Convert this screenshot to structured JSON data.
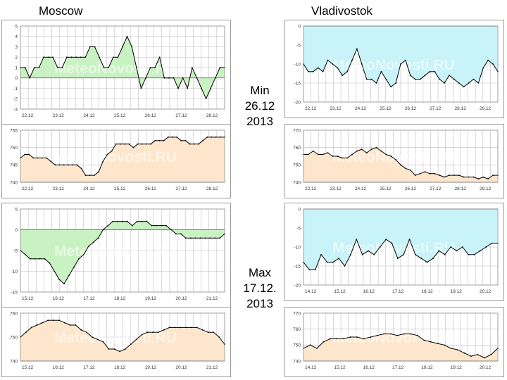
{
  "header": {
    "left_city": "Moscow",
    "right_city": "Vladivostok"
  },
  "notes": {
    "min": [
      "Min",
      "26.12",
      "2013"
    ],
    "max": [
      "Max",
      "17.12.",
      "2013"
    ]
  },
  "watermark": "MeteoNovosti.RU",
  "colors": {
    "temp_green": "#c9f2c2",
    "temp_cyan": "#c8f3f9",
    "pressure_peach": "#fde6cc",
    "line": "#000000",
    "grid": "#bdbdbd"
  },
  "chart_data": [
    {
      "id": "moscow-min-temp",
      "type": "area",
      "city": "Moscow",
      "period": "Min",
      "ylim": [
        -3,
        5
      ],
      "yticks": [
        5,
        4,
        3,
        2,
        1,
        0,
        -1,
        -2,
        -3
      ],
      "fill_color": "#c9f2c2",
      "xlabels": [
        "22.12",
        "23.12",
        "24.12",
        "25.12",
        "26.12",
        "27.12",
        "28.12"
      ],
      "values": [
        1,
        1,
        0,
        1,
        1,
        2,
        2,
        2,
        1,
        1,
        2,
        2,
        2,
        2,
        2,
        3,
        3,
        2,
        1,
        1,
        2,
        2,
        3,
        4,
        3,
        1,
        -1,
        0,
        1,
        1,
        2,
        0,
        0,
        0,
        -1,
        0,
        -1,
        1,
        0,
        -1,
        -2,
        -1,
        0,
        1,
        1
      ]
    },
    {
      "id": "moscow-min-pressure",
      "type": "area",
      "city": "Moscow",
      "period": "Min",
      "ylim": [
        740,
        755
      ],
      "yticks": [
        755,
        750,
        745,
        740
      ],
      "fill_color": "#fde6cc",
      "xlabels": [
        "22.12",
        "23.12",
        "24.12",
        "25.12",
        "26.12",
        "27.12",
        "28.12"
      ],
      "values": [
        747,
        748,
        748,
        747,
        747,
        747,
        747,
        746,
        745,
        745,
        745,
        745,
        745,
        745,
        744,
        742,
        742,
        742,
        743,
        746,
        748,
        749,
        751,
        751,
        751,
        751,
        750,
        751,
        751,
        751,
        751,
        752,
        752,
        752,
        753,
        753,
        753,
        752,
        752,
        751,
        751,
        751,
        752,
        753,
        753,
        753,
        753,
        753
      ]
    },
    {
      "id": "vladivostok-min-temp",
      "type": "area",
      "city": "Vladivostok",
      "period": "Min",
      "ylim": [
        -20,
        0
      ],
      "yticks": [
        0,
        -5,
        -10,
        -15,
        -20
      ],
      "fill_color": "#c8f3f9",
      "xlabels": [
        "22.12",
        "23.12",
        "24.12",
        "25.12",
        "26.12",
        "27.12",
        "28.12",
        "29.12"
      ],
      "values": [
        -10,
        -12,
        -12,
        -11,
        -12,
        -9,
        -10,
        -11,
        -13,
        -12,
        -9,
        -6,
        -10,
        -14,
        -14,
        -15,
        -12,
        -14,
        -16,
        -15,
        -10,
        -9,
        -13,
        -14,
        -14,
        -13,
        -12,
        -12,
        -14,
        -15,
        -13,
        -14,
        -15,
        -16,
        -15,
        -14,
        -15,
        -11,
        -9,
        -10,
        -12
      ]
    },
    {
      "id": "vladivostok-min-pressure",
      "type": "area",
      "city": "Vladivostok",
      "period": "Min",
      "ylim": [
        740,
        770
      ],
      "yticks": [
        770,
        760,
        750,
        740
      ],
      "fill_color": "#fde6cc",
      "xlabels": [
        "22.12",
        "23.12",
        "24.12",
        "25.12",
        "26.12",
        "27.12",
        "28.12",
        "29.12"
      ],
      "values": [
        756,
        756,
        758,
        756,
        756,
        757,
        755,
        755,
        754,
        754,
        756,
        758,
        759,
        757,
        759,
        760,
        758,
        756,
        755,
        753,
        750,
        748,
        747,
        744,
        745,
        746,
        745,
        745,
        744,
        743,
        744,
        744,
        744,
        743,
        743,
        743,
        742,
        743,
        742,
        744,
        744
      ]
    },
    {
      "id": "moscow-max-temp",
      "type": "area",
      "city": "Moscow",
      "period": "Max",
      "ylim": [
        -15,
        5
      ],
      "yticks": [
        5,
        0,
        -5,
        -10,
        -15
      ],
      "fill_color": "#c9f2c2",
      "xlabels": [
        "15.12",
        "16.12",
        "17.12",
        "18.12",
        "19.12",
        "20.12",
        "21.12"
      ],
      "values": [
        -5,
        -6,
        -7,
        -7,
        -7,
        -7,
        -8,
        -10,
        -12,
        -13,
        -11,
        -9,
        -7,
        -6,
        -4,
        -3,
        -2,
        0,
        1,
        2,
        2,
        2,
        2,
        1,
        2,
        2,
        2,
        1,
        1,
        1,
        1,
        0,
        -1,
        -1,
        -2,
        -2,
        -2,
        -2,
        -2,
        -2,
        -2,
        -2,
        -1
      ]
    },
    {
      "id": "moscow-max-pressure",
      "type": "area",
      "city": "Moscow",
      "period": "Max",
      "ylim": [
        740,
        760
      ],
      "yticks": [
        760,
        750,
        740
      ],
      "fill_color": "#fde6cc",
      "xlabels": [
        "15.12",
        "16.12",
        "17.12",
        "18.12",
        "19.12",
        "20.12",
        "21.12"
      ],
      "values": [
        750,
        752,
        754,
        755,
        756,
        757,
        757,
        757,
        756,
        755,
        755,
        753,
        752,
        750,
        749,
        748,
        745,
        745,
        744,
        745,
        747,
        749,
        751,
        752,
        752,
        752,
        753,
        754,
        754,
        754,
        754,
        754,
        754,
        753,
        752,
        752,
        750,
        747
      ]
    },
    {
      "id": "vladivostok-max-temp",
      "type": "area",
      "city": "Vladivostok",
      "period": "Max",
      "ylim": [
        -20,
        0
      ],
      "yticks": [
        0,
        -5,
        -10,
        -15,
        -20
      ],
      "fill_color": "#c8f3f9",
      "xlabels": [
        "14.12",
        "15.12",
        "16.12",
        "17.12",
        "18.12",
        "19.12",
        "20.12"
      ],
      "values": [
        -14,
        -16,
        -16,
        -12,
        -14,
        -14,
        -13,
        -15,
        -12,
        -8,
        -12,
        -11,
        -12,
        -10,
        -8,
        -9,
        -13,
        -12,
        -8,
        -12,
        -13,
        -14,
        -13,
        -11,
        -12,
        -10,
        -11,
        -10,
        -12,
        -12,
        -11,
        -10,
        -9,
        -9
      ]
    },
    {
      "id": "vladivostok-max-pressure",
      "type": "area",
      "city": "Vladivostok",
      "period": "Max",
      "ylim": [
        740,
        770
      ],
      "yticks": [
        770,
        760,
        750,
        740
      ],
      "fill_color": "#fde6cc",
      "xlabels": [
        "14.12",
        "15.12",
        "16.12",
        "17.12",
        "18.12",
        "19.12",
        "20.12"
      ],
      "values": [
        748,
        750,
        748,
        752,
        754,
        754,
        754,
        755,
        755,
        754,
        755,
        756,
        757,
        757,
        756,
        757,
        757,
        756,
        753,
        752,
        751,
        750,
        748,
        747,
        745,
        743,
        744,
        742,
        744,
        748
      ]
    }
  ]
}
